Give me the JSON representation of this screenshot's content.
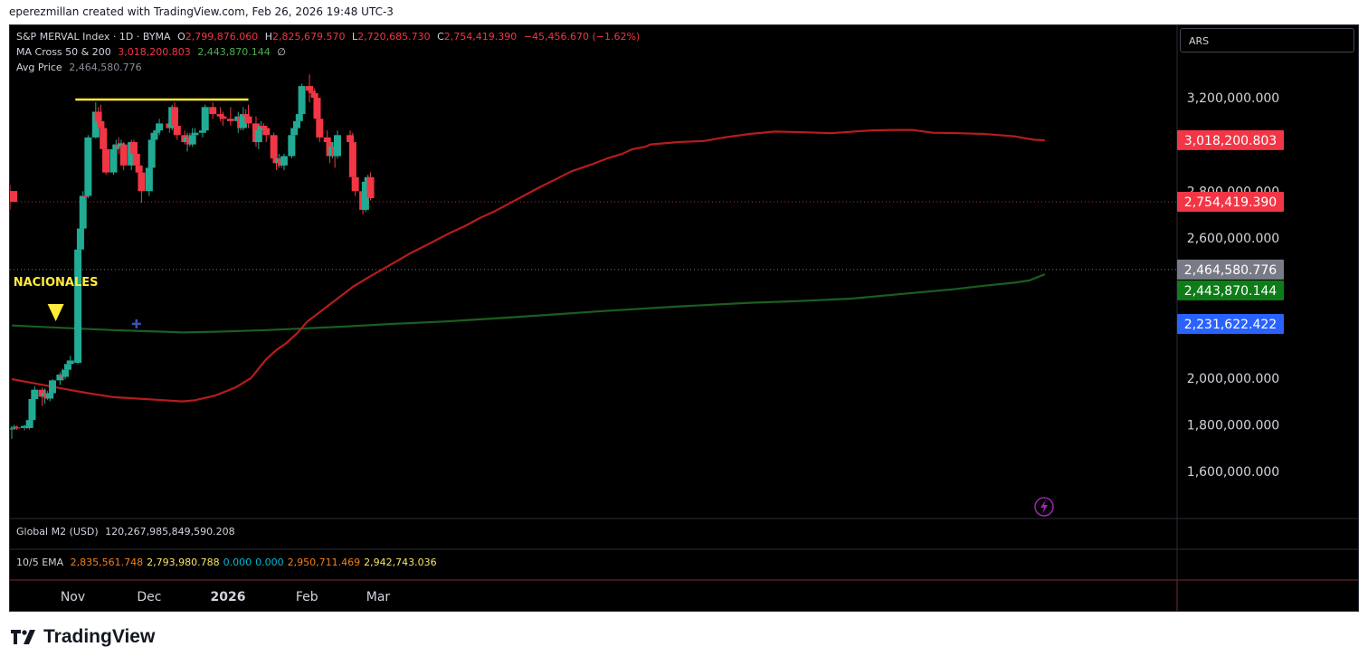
{
  "header": {
    "text": "eperezmillan created with TradingView.com, Feb 26, 2026 19:48 UTC-3"
  },
  "legend": {
    "symbol": "S&P MERVAL Index · 1D · BYMA",
    "o_label": "O",
    "o": "2,799,876.060",
    "h_label": "H",
    "h": "2,825,679.570",
    "l_label": "L",
    "l": "2,720,685.730",
    "c_label": "C",
    "c": "2,754,419.390",
    "change": "−45,456.670 (−1.62%)",
    "ma_name": "MA Cross 50 & 200",
    "ma50": "3,018,200.803",
    "ma200": "2,443,870.144",
    "ma_icon": "∅",
    "avg_name": "Avg Price",
    "avg": "2,464,580.776"
  },
  "currency": "ARS",
  "pane2": {
    "name": "Global M2 (USD)",
    "value": "120,267,985,849,590.208"
  },
  "pane3": {
    "name": "10/5 EMA",
    "values": [
      {
        "text": "2,835,561.748",
        "color": "#f57f17"
      },
      {
        "text": "2,793,980.788",
        "color": "#f7e463"
      },
      {
        "text": "0.000",
        "color": "#00bcd4"
      },
      {
        "text": "0.000",
        "color": "#00bcd4"
      },
      {
        "text": "2,950,711.469",
        "color": "#f57f17"
      },
      {
        "text": "2,942,743.036",
        "color": "#f7e463"
      }
    ]
  },
  "brand": "TradingView",
  "colors": {
    "up": "#22ab94",
    "down": "#f23645",
    "ma50": "#b71c1c",
    "ma200": "#1b5e20",
    "resistance": "#ffeb3b",
    "annotation": "#ffeb3b",
    "price_line": "#f23645",
    "avg_line": "#9598a1",
    "text": "#d1d4dc",
    "separator": "#2a2e39"
  },
  "chart_data": {
    "type": "candlestick",
    "title": "S&P MERVAL Index · 1D · BYMA",
    "currency": "ARS",
    "y_ticks": [
      {
        "value": 3200000000,
        "label": "3,200,000.000"
      },
      {
        "value": 2800000000,
        "label": "2,800,000.000"
      },
      {
        "value": 2600000000,
        "label": "2,600,000.000"
      },
      {
        "value": 2000000000,
        "label": "2,000,000.000"
      },
      {
        "value": 1800000000,
        "label": "1,800,000.000"
      },
      {
        "value": 1600000000,
        "label": "1,600,000.000"
      }
    ],
    "x_ticks": [
      {
        "date": "2025-11-01",
        "label": "Nov"
      },
      {
        "date": "2025-12-01",
        "label": "Dec"
      },
      {
        "date": "2026-01-01",
        "label": "2026"
      },
      {
        "date": "2026-02-01",
        "label": "Feb"
      },
      {
        "date": "2026-03-01",
        "label": "Mar"
      }
    ],
    "price_labels": [
      {
        "text": "3,018,200.803",
        "value": 3018200803,
        "bg": "#f23645",
        "fg": "#ffffff"
      },
      {
        "text": "2,754,419.390",
        "value": 2754419390,
        "bg": "#f23645",
        "fg": "#ffffff"
      },
      {
        "text": "2,464,580.776",
        "value": 2464580776,
        "bg": "#787b86",
        "fg": "#ffffff"
      },
      {
        "text": "2,443,870.144",
        "value": 2443870144,
        "bg": "#0f7d17",
        "fg": "#ffffff"
      },
      {
        "text": "2,231,622.422",
        "value": 2231622422,
        "bg": "#2962ff",
        "fg": "#ffffff"
      }
    ],
    "dates": [
      "2025-10-08",
      "2025-10-09",
      "2025-10-10",
      "2025-10-13",
      "2025-10-14",
      "2025-10-15",
      "2025-10-16",
      "2025-10-17",
      "2025-10-20",
      "2025-10-21",
      "2025-10-22",
      "2025-10-23",
      "2025-10-24",
      "2025-10-27",
      "2025-10-28",
      "2025-10-29",
      "2025-10-30",
      "2025-10-31",
      "2025-11-03",
      "2025-11-04",
      "2025-11-05",
      "2025-11-06",
      "2025-11-07",
      "2025-11-10",
      "2025-11-11",
      "2025-11-12",
      "2025-11-13",
      "2025-11-14",
      "2025-11-17",
      "2025-11-18",
      "2025-11-19",
      "2025-11-20",
      "2025-11-21",
      "2025-11-24",
      "2025-11-25",
      "2025-11-26",
      "2025-11-27",
      "2025-11-28",
      "2025-12-01",
      "2025-12-02",
      "2025-12-03",
      "2025-12-04",
      "2025-12-05",
      "2025-12-09",
      "2025-12-10",
      "2025-12-11",
      "2025-12-12",
      "2025-12-15",
      "2025-12-16",
      "2025-12-17",
      "2025-12-18",
      "2025-12-19",
      "2025-12-22",
      "2025-12-23",
      "2025-12-26",
      "2025-12-29",
      "2025-12-30",
      "2026-01-02",
      "2026-01-05",
      "2026-01-06",
      "2026-01-07",
      "2026-01-08",
      "2026-01-09",
      "2026-01-12",
      "2026-01-13",
      "2026-01-14",
      "2026-01-15",
      "2026-01-16",
      "2026-01-19",
      "2026-01-20",
      "2026-01-21",
      "2026-01-22",
      "2026-01-23",
      "2026-01-26",
      "2026-01-27",
      "2026-01-28",
      "2026-01-29",
      "2026-01-30",
      "2026-02-02",
      "2026-02-03",
      "2026-02-04",
      "2026-02-05",
      "2026-02-06",
      "2026-02-09",
      "2026-02-10",
      "2026-02-11",
      "2026-02-12",
      "2026-02-13",
      "2026-02-18",
      "2026-02-19",
      "2026-02-20",
      "2026-02-23",
      "2026-02-24",
      "2026-02-25",
      "2026-02-26"
    ],
    "ohlc": [
      [
        1780,
        1790,
        1740,
        1785
      ],
      [
        1790,
        1800,
        1780,
        1792
      ],
      [
        1788,
        1796,
        1778,
        1784
      ],
      [
        1786,
        1800,
        1776,
        1795
      ],
      [
        1790,
        1798,
        1782,
        1788
      ],
      [
        1786,
        1826,
        1780,
        1820
      ],
      [
        1820,
        1920,
        1815,
        1910
      ],
      [
        1910,
        1965,
        1900,
        1950
      ],
      [
        1950,
        1960,
        1880,
        1920
      ],
      [
        1920,
        1955,
        1890,
        1935
      ],
      [
        1935,
        1945,
        1905,
        1912
      ],
      [
        1912,
        1945,
        1900,
        1935
      ],
      [
        1935,
        1995,
        1925,
        1990
      ],
      [
        1990,
        2025,
        1970,
        2015
      ],
      [
        2015,
        2040,
        1995,
        2005
      ],
      [
        2005,
        2045,
        1995,
        2035
      ],
      [
        2035,
        2075,
        2020,
        2060
      ],
      [
        2060,
        2095,
        2040,
        2075
      ],
      [
        2065,
        2560,
        2060,
        2550
      ],
      [
        2550,
        2650,
        2540,
        2640
      ],
      [
        2640,
        2800,
        2630,
        2780
      ],
      [
        2780,
        2790,
        2760,
        2775
      ],
      [
        2780,
        3040,
        2770,
        3030
      ],
      [
        3030,
        3180,
        3025,
        3140
      ],
      [
        3140,
        3160,
        3080,
        3100
      ],
      [
        3100,
        3170,
        3030,
        3070
      ],
      [
        3070,
        3090,
        2950,
        2980
      ],
      [
        2980,
        3010,
        2870,
        2880
      ],
      [
        2880,
        3000,
        2870,
        2980
      ],
      [
        2980,
        3020,
        2960,
        3000
      ],
      [
        3000,
        3030,
        2960,
        2990
      ],
      [
        2990,
        3020,
        2980,
        3005
      ],
      [
        3000,
        3010,
        2890,
        2910
      ],
      [
        2910,
        3020,
        2890,
        3010
      ],
      [
        3010,
        3020,
        2940,
        2960
      ],
      [
        2960,
        2990,
        2880,
        2910
      ],
      [
        2910,
        2930,
        2830,
        2880
      ],
      [
        2880,
        2890,
        2750,
        2800
      ],
      [
        2800,
        2920,
        2780,
        2900
      ],
      [
        2900,
        3030,
        2890,
        3020
      ],
      [
        3020,
        3060,
        3000,
        3050
      ],
      [
        3050,
        3080,
        3030,
        3060
      ],
      [
        3060,
        3110,
        3040,
        3090
      ],
      [
        3090,
        3110,
        3050,
        3070
      ],
      [
        3070,
        3170,
        3060,
        3160
      ],
      [
        3160,
        3180,
        3070,
        3080
      ],
      [
        3080,
        3090,
        3020,
        3040
      ],
      [
        3040,
        3060,
        3000,
        3010
      ],
      [
        3010,
        3050,
        2970,
        3030
      ],
      [
        3030,
        3050,
        2990,
        3000
      ],
      [
        3000,
        3070,
        2990,
        3040
      ],
      [
        3040,
        3070,
        3020,
        3050
      ],
      [
        3050,
        3070,
        3030,
        3060
      ],
      [
        3060,
        3170,
        3050,
        3160
      ],
      [
        3160,
        3180,
        3110,
        3130
      ],
      [
        3130,
        3160,
        3100,
        3120
      ],
      [
        3120,
        3140,
        3080,
        3110
      ],
      [
        3110,
        3160,
        3080,
        3100
      ],
      [
        3100,
        3140,
        3050,
        3120
      ],
      [
        3120,
        3130,
        3060,
        3070
      ],
      [
        3070,
        3160,
        3060,
        3130
      ],
      [
        3130,
        3150,
        3090,
        3120
      ],
      [
        3120,
        3170,
        3070,
        3090
      ],
      [
        3090,
        3120,
        2990,
        3010
      ],
      [
        3010,
        3080,
        2980,
        3060
      ],
      [
        3060,
        3100,
        3040,
        3080
      ],
      [
        3080,
        3090,
        3040,
        3070
      ],
      [
        3070,
        3080,
        3010,
        3040
      ],
      [
        3040,
        3050,
        2920,
        2940
      ],
      [
        2940,
        2950,
        2890,
        2920
      ],
      [
        2920,
        2960,
        2900,
        2940
      ],
      [
        2940,
        2950,
        2900,
        2910
      ],
      [
        2910,
        2960,
        2890,
        2950
      ],
      [
        2950,
        3060,
        2940,
        3040
      ],
      [
        3040,
        3090,
        3030,
        3070
      ],
      [
        3070,
        3120,
        3060,
        3100
      ],
      [
        3100,
        3150,
        3090,
        3130
      ],
      [
        3130,
        3260,
        3120,
        3250
      ],
      [
        3250,
        3300,
        3180,
        3230
      ],
      [
        3230,
        3250,
        3200,
        3220
      ],
      [
        3220,
        3240,
        3150,
        3200
      ],
      [
        3200,
        3210,
        3100,
        3110
      ],
      [
        3110,
        3120,
        3010,
        3030
      ],
      [
        3030,
        3060,
        2980,
        3010
      ],
      [
        3010,
        3020,
        2920,
        2950
      ],
      [
        2950,
        3010,
        2940,
        2990
      ],
      [
        2990,
        3040,
        2900,
        2950
      ],
      [
        2950,
        3060,
        2940,
        3040
      ],
      [
        3040,
        3060,
        2990,
        3010
      ],
      [
        3010,
        3050,
        2850,
        2860
      ],
      [
        2860,
        2880,
        2780,
        2800
      ],
      [
        2800,
        2810,
        2700,
        2720
      ],
      [
        2720,
        2850,
        2710,
        2840
      ],
      [
        2840,
        2870,
        2790,
        2860
      ],
      [
        2860,
        2880,
        2760,
        2770
      ],
      [
        2770,
        2820,
        2750,
        2800
      ],
      [
        2800,
        2810,
        2760,
        2790
      ],
      [
        2800,
        2826,
        2721,
        2754
      ]
    ],
    "ohlc_unit": "millions ARS",
    "ma50": [
      [
        0,
        1995
      ],
      [
        10,
        1975
      ],
      [
        20,
        1955
      ],
      [
        30,
        1935
      ],
      [
        40,
        1918
      ],
      [
        60,
        1905
      ],
      [
        67,
        1900
      ],
      [
        72,
        1905
      ],
      [
        80,
        1925
      ],
      [
        88,
        1960
      ],
      [
        94,
        2000
      ],
      [
        97,
        2040
      ],
      [
        100,
        2080
      ],
      [
        104,
        2120
      ],
      [
        108,
        2150
      ],
      [
        112,
        2190
      ],
      [
        116,
        2240
      ],
      [
        122,
        2290
      ],
      [
        128,
        2340
      ],
      [
        134,
        2390
      ],
      [
        140,
        2430
      ],
      [
        148,
        2480
      ],
      [
        156,
        2530
      ],
      [
        165,
        2580
      ],
      [
        172,
        2620
      ],
      [
        178,
        2650
      ],
      [
        184,
        2685
      ],
      [
        190,
        2715
      ],
      [
        196,
        2750
      ],
      [
        202,
        2785
      ],
      [
        208,
        2820
      ],
      [
        214,
        2852
      ],
      [
        220,
        2885
      ],
      [
        228,
        2915
      ],
      [
        234,
        2940
      ],
      [
        240,
        2960
      ],
      [
        244,
        2980
      ],
      [
        249,
        2990
      ],
      [
        251,
        3000
      ],
      [
        262,
        3010
      ],
      [
        272,
        3015
      ],
      [
        280,
        3030
      ],
      [
        290,
        3045
      ],
      [
        300,
        3055
      ],
      [
        312,
        3052
      ],
      [
        322,
        3048
      ],
      [
        331,
        3055
      ],
      [
        338,
        3060
      ],
      [
        346,
        3062
      ],
      [
        354,
        3062
      ],
      [
        358,
        3056
      ],
      [
        362,
        3050
      ],
      [
        372,
        3048
      ],
      [
        382,
        3045
      ],
      [
        388,
        3040
      ],
      [
        394,
        3035
      ],
      [
        399,
        3025
      ],
      [
        402,
        3020
      ],
      [
        406,
        3018
      ]
    ],
    "ma200": [
      [
        0,
        2225
      ],
      [
        20,
        2215
      ],
      [
        40,
        2205
      ],
      [
        60,
        2198
      ],
      [
        67,
        2195
      ],
      [
        80,
        2198
      ],
      [
        100,
        2205
      ],
      [
        130,
        2220
      ],
      [
        150,
        2232
      ],
      [
        170,
        2242
      ],
      [
        190,
        2255
      ],
      [
        210,
        2270
      ],
      [
        230,
        2285
      ],
      [
        260,
        2305
      ],
      [
        290,
        2322
      ],
      [
        310,
        2330
      ],
      [
        330,
        2340
      ],
      [
        350,
        2360
      ],
      [
        370,
        2380
      ],
      [
        382,
        2395
      ],
      [
        394,
        2408
      ],
      [
        400,
        2418
      ],
      [
        406,
        2444
      ]
    ],
    "ma_x_unit": "days since 2025-10-08",
    "resistance": {
      "start": "2025-11-02",
      "end": "2026-01-09",
      "value_m": 3200
    },
    "cross_marker": {
      "date": "2025-11-26",
      "value_m": 2232
    },
    "annotation": {
      "text": "NACIONALES",
      "date": "2025-10-26"
    }
  }
}
